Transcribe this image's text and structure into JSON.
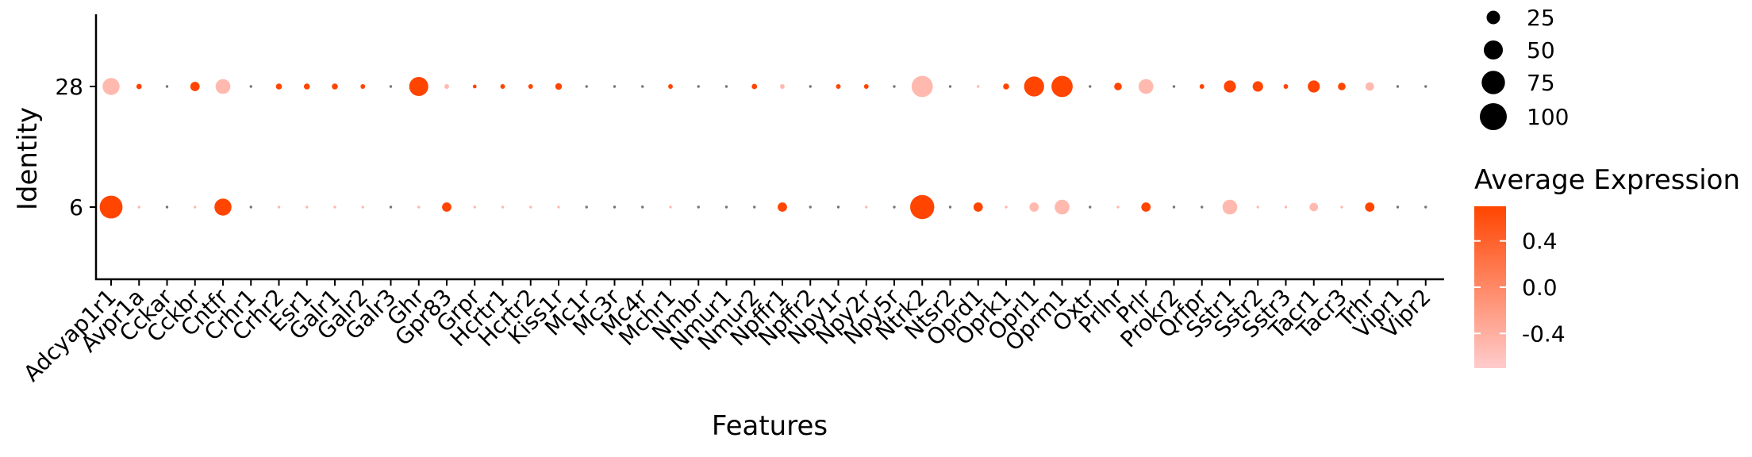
{
  "chart_data": {
    "type": "dotplot",
    "xlabel": "Features",
    "ylabel": "Identity",
    "categories": [
      "Adcyap1r1",
      "Avpr1a",
      "Cckar",
      "Cckbr",
      "Cntfr",
      "Crhr1",
      "Crhr2",
      "Esr1",
      "Galr1",
      "Galr2",
      "Galr3",
      "Ghr",
      "Gpr83",
      "Grpr",
      "Hcrtr1",
      "Hcrtr2",
      "Kiss1r",
      "Mc1r",
      "Mc3r",
      "Mc4r",
      "Mchr1",
      "Nmbr",
      "Nmur1",
      "Nmur2",
      "Npffr1",
      "Npffr2",
      "Npy1r",
      "Npy2r",
      "Npy5r",
      "Ntrk2",
      "Ntsr2",
      "Oprd1",
      "Oprk1",
      "Oprl1",
      "Oprm1",
      "Oxtr",
      "Prlhr",
      "Prlr",
      "Prokr2",
      "Qrfpr",
      "Sstr1",
      "Sstr2",
      "Sstr3",
      "Tacr1",
      "Tacr3",
      "Trhr",
      "Vipr1",
      "Vipr2"
    ],
    "identities": [
      "28",
      "6"
    ],
    "series": [
      {
        "name": "28",
        "pct_expressed": [
          40,
          4,
          1,
          12,
          30,
          1,
          5,
          5,
          5,
          3,
          1,
          50,
          3,
          2,
          3,
          3,
          6,
          1,
          1,
          1,
          3,
          1,
          1,
          4,
          3,
          1,
          3,
          3,
          1,
          62,
          1,
          1,
          5,
          55,
          62,
          1,
          8,
          30,
          1,
          3,
          20,
          15,
          3,
          20,
          8,
          10,
          1,
          1
        ],
        "avg_expression": [
          -0.5,
          0.8,
          0.5,
          0.8,
          -0.5,
          0.5,
          0.8,
          0.8,
          0.8,
          0.8,
          0.5,
          0.8,
          -0.5,
          0.8,
          0.8,
          0.8,
          0.8,
          0.5,
          0.5,
          0.5,
          0.8,
          0.5,
          0.5,
          0.8,
          -0.5,
          0.5,
          0.8,
          0.8,
          0.5,
          -0.5,
          0.5,
          -0.5,
          0.8,
          0.8,
          0.8,
          0.5,
          0.8,
          -0.5,
          0.5,
          0.8,
          0.8,
          0.8,
          0.8,
          0.8,
          0.8,
          -0.5,
          0.5,
          0.5
        ]
      },
      {
        "name": "6",
        "pct_expressed": [
          72,
          1,
          1,
          1,
          40,
          1,
          1,
          1,
          1,
          1,
          1,
          1,
          12,
          1,
          1,
          1,
          1,
          1,
          1,
          1,
          1,
          1,
          1,
          1,
          12,
          1,
          1,
          1,
          1,
          80,
          1,
          12,
          1,
          12,
          30,
          1,
          1,
          12,
          1,
          1,
          30,
          1,
          1,
          10,
          1,
          12,
          1,
          1
        ],
        "avg_expression": [
          0.8,
          -0.5,
          0.5,
          -0.5,
          0.8,
          0.5,
          -0.5,
          -0.5,
          -0.5,
          -0.5,
          0.5,
          -0.5,
          0.8,
          -0.5,
          -0.5,
          -0.5,
          -0.5,
          0.5,
          0.5,
          0.5,
          -0.5,
          0.5,
          0.5,
          0.5,
          0.8,
          0.5,
          0.5,
          -0.5,
          0.5,
          0.8,
          0.5,
          0.8,
          -0.5,
          -0.5,
          -0.5,
          0.5,
          -0.5,
          0.8,
          0.5,
          0.5,
          -0.5,
          -0.5,
          -0.5,
          -0.5,
          -0.5,
          0.8,
          0.5,
          0.5
        ]
      }
    ],
    "size_legend": {
      "title": "",
      "values": [
        25,
        50,
        75,
        100
      ],
      "labels": [
        "25",
        "50",
        "75",
        "100"
      ]
    },
    "color_legend": {
      "title": "Average Expression",
      "ticks": [
        0.4,
        0.0,
        -0.4
      ],
      "labels": [
        "0.4",
        "0.0",
        "-0.4"
      ],
      "range": [
        -0.7,
        0.7
      ],
      "low_color": "#FFCCCC",
      "high_color": "#FF4500"
    },
    "low_dot_color": "#777777",
    "grid": false
  }
}
